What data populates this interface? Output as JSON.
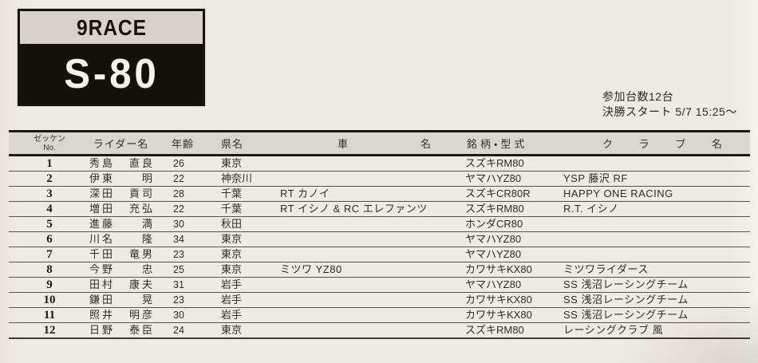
{
  "race_box": {
    "race_no": "9RACE",
    "class_name": "S-80"
  },
  "meta": {
    "entry_count": "参加台数12台",
    "final_start": "決勝スタート 5/7 15:25～"
  },
  "colors": {
    "page_background": "#eeeae4",
    "box_black": "#14110d",
    "box_gray_band": "#d7d3cc",
    "table_header_background": "#dad6d0",
    "rule_dark": "#1e1b16"
  },
  "table": {
    "headers": {
      "no_line1": "ゼッケン",
      "no_line2": "No.",
      "rider": "ライダー名",
      "age": "年齢",
      "prefecture": "県名",
      "machine": [
        "車",
        "名"
      ],
      "brand": "銘柄・型式",
      "club": [
        "ク",
        "ラ",
        "ブ",
        "名"
      ]
    },
    "rows": [
      {
        "no": "1",
        "family": "秀島",
        "given": "直良",
        "age": "26",
        "pref": "東京",
        "machine": "",
        "brand": "スズキRM80",
        "club": ""
      },
      {
        "no": "2",
        "family": "伊東",
        "given": "明",
        "age": "22",
        "pref": "神奈川",
        "machine": "",
        "brand": "ヤマハYZ80",
        "club": "YSP 藤沢 RF"
      },
      {
        "no": "3",
        "family": "深田",
        "given": "貢司",
        "age": "28",
        "pref": "千葉",
        "machine": "RT カノイ",
        "brand": "スズキCR80R",
        "club": "HAPPY ONE RACING"
      },
      {
        "no": "4",
        "family": "増田",
        "given": "充弘",
        "age": "22",
        "pref": "千葉",
        "machine": "RT イシノ & RC エレファンツ",
        "brand": "スズキRM80",
        "club": "R.T. イシノ"
      },
      {
        "no": "5",
        "family": "進藤",
        "given": "満",
        "age": "30",
        "pref": "秋田",
        "machine": "",
        "brand": "ホンダCR80",
        "club": ""
      },
      {
        "no": "6",
        "family": "川名",
        "given": "隆",
        "age": "34",
        "pref": "東京",
        "machine": "",
        "brand": "ヤマハYZ80",
        "club": ""
      },
      {
        "no": "7",
        "family": "千田",
        "given": "竜男",
        "age": "23",
        "pref": "東京",
        "machine": "",
        "brand": "ヤマハYZ80",
        "club": ""
      },
      {
        "no": "8",
        "family": "今野",
        "given": "忠",
        "age": "25",
        "pref": "東京",
        "machine": "ミツワ YZ80",
        "brand": "カワサキKX80",
        "club": "ミツワライダース"
      },
      {
        "no": "9",
        "family": "田村",
        "given": "康夫",
        "age": "31",
        "pref": "岩手",
        "machine": "",
        "brand": "ヤマハYZ80",
        "club": "SS 浅沼レーシングチーム"
      },
      {
        "no": "10",
        "family": "鎌田",
        "given": "晃",
        "age": "23",
        "pref": "岩手",
        "machine": "",
        "brand": "カワサキKX80",
        "club": "SS 浅沼レーシングチーム"
      },
      {
        "no": "11",
        "family": "照井",
        "given": "明彦",
        "age": "30",
        "pref": "岩手",
        "machine": "",
        "brand": "カワサキKX80",
        "club": "SS 浅沼レーシングチーム"
      },
      {
        "no": "12",
        "family": "日野",
        "given": "泰臣",
        "age": "24",
        "pref": "東京",
        "machine": "",
        "brand": "スズキRM80",
        "club": "レーシングクラブ 風"
      }
    ]
  }
}
